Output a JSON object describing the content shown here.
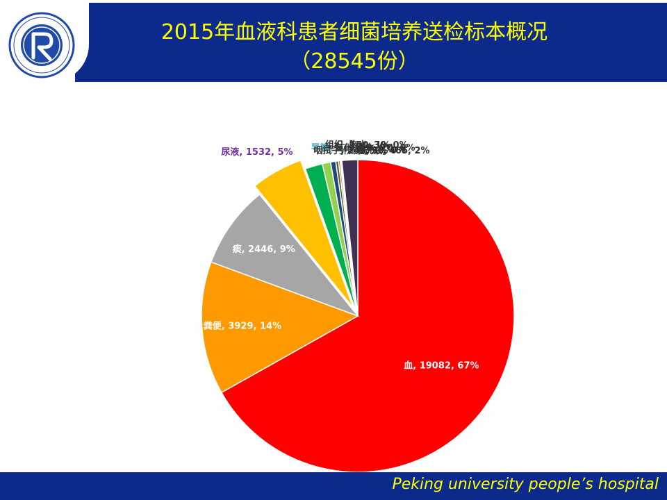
{
  "header": {
    "title": "2015年血液科患者细菌培养送检标本概况",
    "subtitle": "（28545份）"
  },
  "logo": {
    "text": "北京大学人民医院 PEKING UNIVERSITY PEOPLE'S HOSPITAL 1918",
    "color": "#1f4aa8"
  },
  "footer": {
    "text": "Peking university people’s hospital"
  },
  "colors": {
    "band": "#0b2a8c",
    "title_text": "#ffff00"
  },
  "chart_data": {
    "type": "pie",
    "total": 28545,
    "slices": [
      {
        "label": "血",
        "value": 19082,
        "percent": "67%",
        "color": "#ff0000",
        "label_color": "#ffffff"
      },
      {
        "label": "粪便",
        "value": 3929,
        "percent": "14%",
        "color": "#ff9900",
        "label_color": "#ffffff"
      },
      {
        "label": "痰",
        "value": 2446,
        "percent": "9%",
        "color": "#a6a6a6",
        "label_color": "#ffffff"
      },
      {
        "label": "尿液",
        "value": 1532,
        "percent": "5%",
        "color": "#ffc000",
        "label_color": "#7030a0"
      },
      {
        "label": "导管",
        "value": 515,
        "percent": "2%",
        "color": "#00b050",
        "label_color": "#4bacc6"
      },
      {
        "label": "咽拭子",
        "value": 245,
        "percent": "1%",
        "color": "#92d050",
        "label_color": "#333333"
      },
      {
        "label": "组织",
        "value": 150,
        "percent": "1%",
        "color": "#1f497d",
        "label_color": "#333333"
      },
      {
        "label": "其他",
        "value": 80,
        "percent": "0%",
        "color": "#4f6228",
        "label_color": "#333333"
      },
      {
        "label": "引流液",
        "value": 50,
        "percent": "0%",
        "color": "#c0504d",
        "label_color": "#333333"
      },
      {
        "label": "胸水",
        "value": 30,
        "percent": "0%",
        "color": "#e46c0a",
        "label_color": "#333333"
      },
      {
        "label": "腹水",
        "value": 20,
        "percent": "0%",
        "color": "#7f6000",
        "label_color": "#333333"
      },
      {
        "label": "灌洗液",
        "value": 466,
        "percent": "2%",
        "color": "#403152",
        "label_color": "#333333"
      }
    ]
  }
}
